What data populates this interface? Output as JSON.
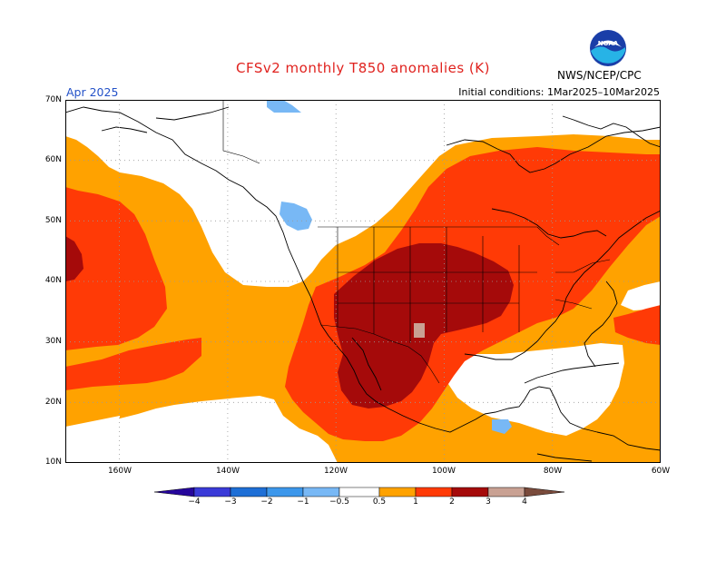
{
  "header": {
    "title": "CFSv2 monthly T850 anomalies (K)",
    "period": "Apr 2025",
    "initial_conditions": "Initial conditions: 1Mar2025–10Mar2025",
    "agency": "NWS/NCEP/CPC",
    "logo_icon": "noaa-logo-icon"
  },
  "map": {
    "lat_labels": [
      "70N",
      "60N",
      "50N",
      "40N",
      "30N",
      "20N",
      "10N"
    ],
    "lon_labels": [
      "160W",
      "140W",
      "120W",
      "100W",
      "80W",
      "60W"
    ],
    "lat_range": [
      10,
      70
    ],
    "lon_range": [
      -170,
      -60
    ],
    "grid": true,
    "highlights": [
      "warm anomaly over the central and southwestern United States",
      "warm anomaly over western Mexico",
      "warm anomaly over the northeastern Pacific",
      "cool anomaly near Vancouver Island",
      "cool anomaly near Central America"
    ]
  },
  "colorbar": {
    "labels": [
      "−4",
      "−3",
      "−2",
      "−1",
      "−0.5",
      "0.5",
      "1",
      "2",
      "3",
      "4"
    ],
    "colors": {
      "lt_m4": "#26069c",
      "m4_m3": "#3a3ad8",
      "m3_m2": "#1e6fd6",
      "m2_m1": "#3c97eb",
      "m1_m05": "#78b8f5",
      "neutral": "#ffffff",
      "p05_p1": "#ffa200",
      "p1_p2": "#ff3a06",
      "p2_p3": "#a50a0a",
      "p3_p4": "#c9a193",
      "gt_p4": "#7a4b3c"
    }
  }
}
